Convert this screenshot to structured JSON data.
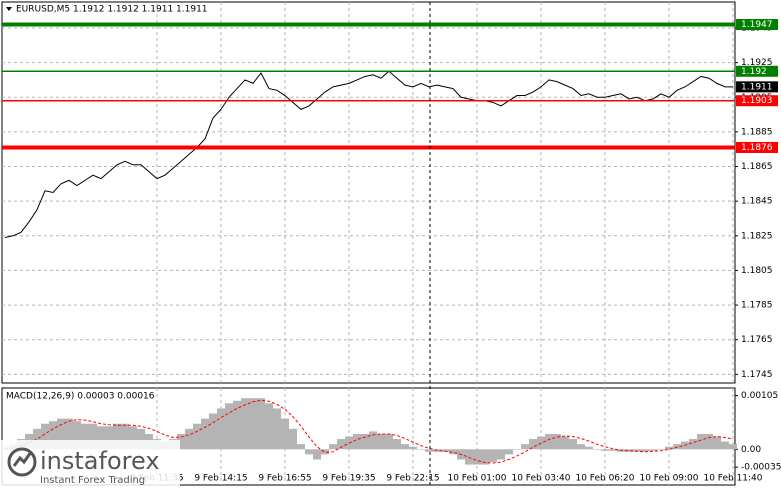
{
  "chart_data": [
    {
      "type": "line",
      "title": "EURUSD,M5  1.1912 1.1912 1.1911 1.1911",
      "series": [
        {
          "color": "#000000",
          "values": [
            1.1824,
            1.1825,
            1.1827,
            1.1833,
            1.184,
            1.1851,
            1.185,
            1.1855,
            1.1857,
            1.1854,
            1.1857,
            1.186,
            1.1858,
            1.1862,
            1.1866,
            1.1868,
            1.1866,
            1.1866,
            1.1862,
            1.1858,
            1.186,
            1.1864,
            1.1868,
            1.1872,
            1.1876,
            1.1881,
            1.1893,
            1.1898,
            1.1905,
            1.191,
            1.1915,
            1.1913,
            1.1919,
            1.191,
            1.1909,
            1.1906,
            1.1902,
            1.1898,
            1.19,
            1.1904,
            1.1908,
            1.1911,
            1.1912,
            1.1913,
            1.1915,
            1.1917,
            1.1918,
            1.1916,
            1.192,
            1.1916,
            1.1912,
            1.1911,
            1.1913,
            1.1911,
            1.1912,
            1.1911,
            1.191,
            1.1905,
            1.1904,
            1.1903,
            1.1903,
            1.1902,
            1.19,
            1.1903,
            1.1906,
            1.1906,
            1.1908,
            1.1911,
            1.1915,
            1.1914,
            1.1912,
            1.191,
            1.1906,
            1.1907,
            1.1905,
            1.1905,
            1.1906,
            1.1907,
            1.1904,
            1.1905,
            1.1903,
            1.1904,
            1.1907,
            1.1905,
            1.1909,
            1.1911,
            1.1914,
            1.1917,
            1.1916,
            1.1913,
            1.1911,
            1.1911
          ]
        }
      ],
      "ylim": [
        1.174,
        1.196
      ],
      "yticks": [
        1.1745,
        1.1765,
        1.1785,
        1.1805,
        1.1825,
        1.1845,
        1.1865,
        1.1885,
        1.1905,
        1.1925,
        1.1945
      ],
      "grid": true,
      "levels": [
        {
          "value": 1.1947,
          "color": "#008000",
          "thick": true
        },
        {
          "value": 1.192,
          "color": "#008000",
          "thick": false
        },
        {
          "value": 1.1903,
          "color": "#ff0000",
          "thick": false
        },
        {
          "value": 1.1876,
          "color": "#ff0000",
          "thick": true
        },
        {
          "value": 1.1911,
          "color": "#000000",
          "thick": false,
          "box_only": true
        }
      ]
    },
    {
      "type": "macd",
      "title": "MACD(12,26,9) 0.00003 0.00016",
      "categories": [
        null,
        null,
        null,
        null,
        null,
        null,
        null,
        null,
        null,
        null,
        null,
        null,
        null,
        null,
        null,
        null,
        null,
        null,
        null,
        "9 Feb 11:35",
        null,
        null,
        null,
        null,
        null,
        null,
        null,
        "9 Feb 14:15",
        null,
        null,
        null,
        null,
        null,
        null,
        null,
        "9 Feb 16:55",
        null,
        null,
        null,
        null,
        null,
        null,
        null,
        "9 Feb 19:35",
        null,
        null,
        null,
        null,
        null,
        null,
        null,
        "9 Feb 22:15",
        null,
        null,
        null,
        null,
        null,
        null,
        null,
        "10 Feb 01:00",
        null,
        null,
        null,
        null,
        null,
        null,
        null,
        "10 Feb 03:40",
        null,
        null,
        null,
        null,
        null,
        null,
        null,
        "10 Feb 06:20",
        null,
        null,
        null,
        null,
        null,
        null,
        null,
        "10 Feb 09:00",
        null,
        null,
        null,
        null,
        null,
        null,
        null,
        "10 Feb 11:40"
      ],
      "histogram": {
        "color": "#b4b4b4",
        "values": [
          5e-05,
          0.0001,
          0.0002,
          0.0003,
          0.0004,
          0.0005,
          0.00055,
          0.0006,
          0.0006,
          0.00055,
          0.0005,
          0.0005,
          0.00045,
          0.00045,
          0.0005,
          0.0005,
          0.00045,
          0.0004,
          0.0003,
          0.0002,
          0.00015,
          0.0002,
          0.0003,
          0.0004,
          0.0005,
          0.0006,
          0.0007,
          0.0008,
          0.0009,
          0.00095,
          0.001,
          0.001,
          0.001,
          0.0009,
          0.0008,
          0.0006,
          0.0004,
          0.0001,
          -0.0001,
          -0.0002,
          -0.0001,
          0.0001,
          0.0002,
          0.00025,
          0.0003,
          0.0003,
          0.00035,
          0.0003,
          0.0003,
          0.0002,
          0.0001,
          5e-05,
          0,
          -5e-05,
          -5e-05,
          -5e-05,
          -0.0001,
          -0.0002,
          -0.0003,
          -0.0003,
          -0.0003,
          -0.00025,
          -0.0002,
          -0.0001,
          0,
          0.0001,
          0.0002,
          0.00025,
          0.0003,
          0.0003,
          0.00025,
          0.0002,
          0.0001,
          5e-05,
          0,
          -3e-05,
          -3e-05,
          -5e-05,
          -5e-05,
          -5e-05,
          -5e-05,
          -3e-05,
          0,
          5e-05,
          0.0001,
          0.00015,
          0.0002,
          0.0003,
          0.0003,
          0.00025,
          0.00015,
          0.0001
        ]
      },
      "signal": {
        "color": "#ff0000",
        "values": [
          0,
          3e-05,
          7e-05,
          0.00013,
          0.0002,
          0.0003,
          0.0004,
          0.00048,
          0.00055,
          0.00058,
          0.00057,
          0.00054,
          0.0005,
          0.00048,
          0.00047,
          0.00047,
          0.00047,
          0.00045,
          0.00041,
          0.00035,
          0.00028,
          0.00023,
          0.00024,
          0.00028,
          0.00035,
          0.00043,
          0.00052,
          0.00062,
          0.00071,
          0.0008,
          0.00087,
          0.00093,
          0.00096,
          0.00094,
          0.00088,
          0.00078,
          0.00064,
          0.00045,
          0.00024,
          5e-05,
          -6e-05,
          -5e-05,
          4e-05,
          0.00012,
          0.00019,
          0.00024,
          0.00028,
          0.0003,
          0.0003,
          0.00027,
          0.00021,
          0.00014,
          7e-05,
          2e-05,
          -2e-05,
          -4e-05,
          -6e-05,
          -0.0001,
          -0.00016,
          -0.00022,
          -0.00026,
          -0.00027,
          -0.00025,
          -0.0002,
          -0.00013,
          -5e-05,
          4e-05,
          0.00012,
          0.00019,
          0.00024,
          0.00026,
          0.00025,
          0.00021,
          0.00016,
          0.0001,
          5e-05,
          1e-05,
          -2e-05,
          -3e-05,
          -4e-05,
          -5e-05,
          -4e-05,
          -3e-05,
          0,
          4e-05,
          8e-05,
          0.00013,
          0.00018,
          0.00023,
          0.00025,
          0.00023,
          0.0002
        ]
      },
      "ylim": [
        -0.0007,
        0.0012
      ],
      "yticks": [
        {
          "value": 0,
          "label": "0.00"
        },
        0.00105,
        -0.00035
      ],
      "grid": true
    }
  ],
  "watermark": {
    "brand": "instaforex",
    "tagline": "Instant Forex Trading"
  }
}
